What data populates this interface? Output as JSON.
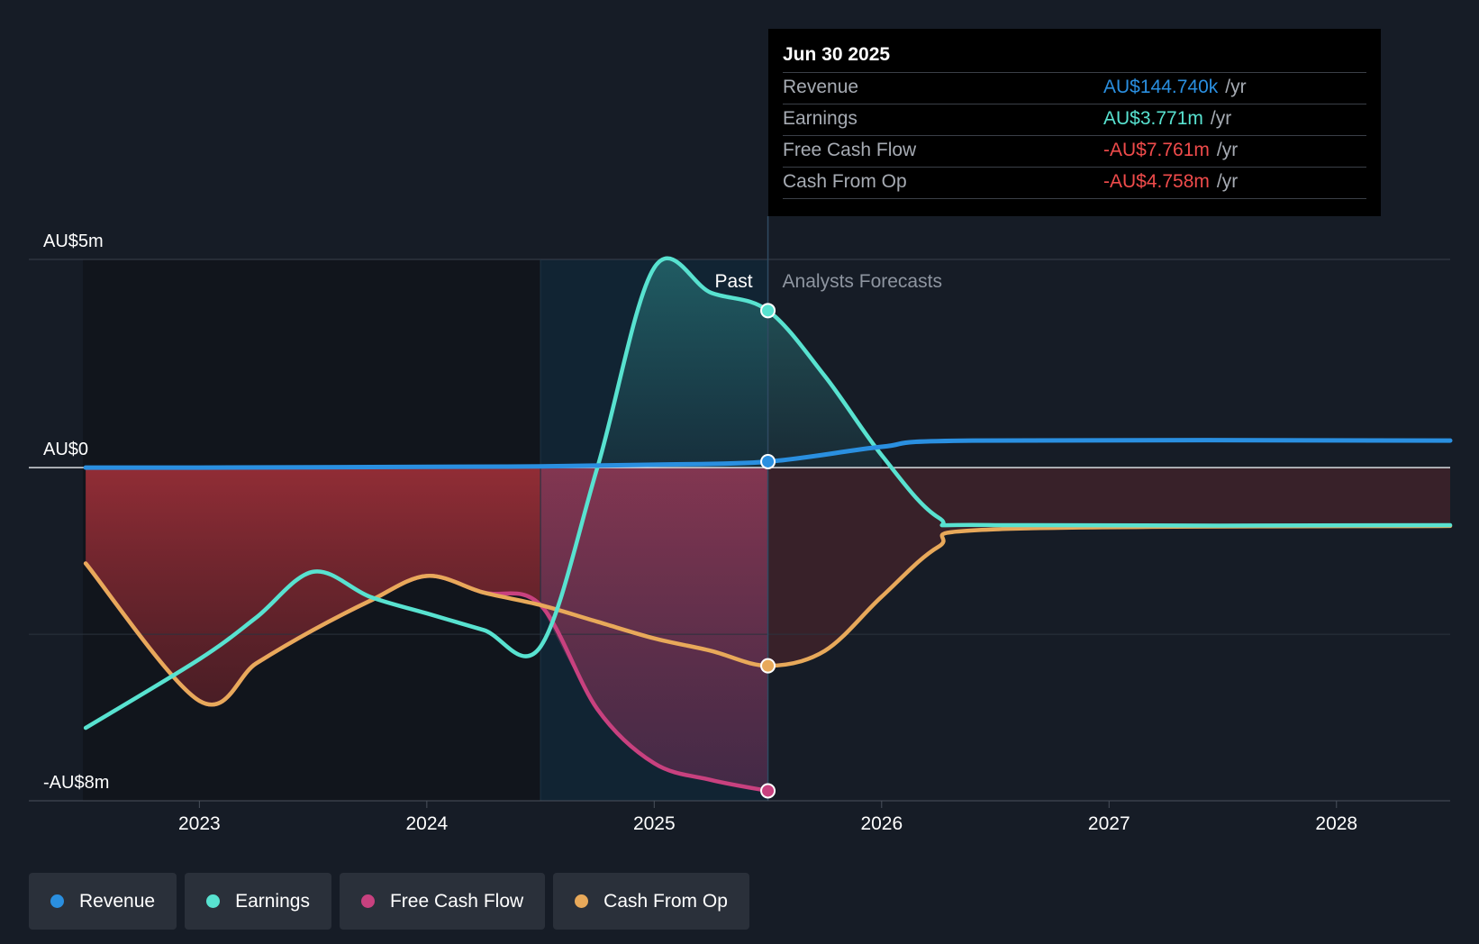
{
  "colors": {
    "revenue": "#2a8fe0",
    "earnings": "#58e2d0",
    "fcf": "#c8417f",
    "cfo": "#e8a95a",
    "negative": "#ef4b4b",
    "background": "#161c26"
  },
  "chart_data": {
    "type": "line",
    "y_unit": "AU$",
    "ylim": [
      -8000000,
      5000000
    ],
    "y_tick_labels": [
      {
        "label": "AU$5m",
        "value": 5000000
      },
      {
        "label": "AU$0",
        "value": 0
      },
      {
        "label": "-AU$8m",
        "value": -8000000
      }
    ],
    "x_ticks": [
      {
        "label": "2023",
        "value": 2023.0
      },
      {
        "label": "2024",
        "value": 2024.0
      },
      {
        "label": "2025",
        "value": 2025.0
      },
      {
        "label": "2026",
        "value": 2026.0
      },
      {
        "label": "2027",
        "value": 2027.0
      },
      {
        "label": "2028",
        "value": 2028.0
      }
    ],
    "xlim": [
      2022.25,
      2028.5
    ],
    "past_label": "Past",
    "forecast_label": "Analysts Forecasts",
    "divider_x": 2025.5,
    "highlight_start_x": 2024.5,
    "series": [
      {
        "key": "revenue",
        "name": "Revenue",
        "points": [
          [
            2022.5,
            0
          ],
          [
            2023.0,
            0
          ],
          [
            2024.0,
            20000
          ],
          [
            2024.5,
            30000
          ],
          [
            2025.0,
            70000
          ],
          [
            2025.5,
            144740
          ],
          [
            2026.0,
            500000
          ],
          [
            2026.4,
            650000
          ],
          [
            2028.5,
            650000
          ]
        ]
      },
      {
        "key": "earnings",
        "name": "Earnings",
        "points": [
          [
            2022.5,
            -6250000
          ],
          [
            2023.0,
            -4600000
          ],
          [
            2023.25,
            -3600000
          ],
          [
            2023.5,
            -2500000
          ],
          [
            2023.75,
            -3100000
          ],
          [
            2024.0,
            -3500000
          ],
          [
            2024.25,
            -3900000
          ],
          [
            2024.5,
            -4300000
          ],
          [
            2024.75,
            0
          ],
          [
            2025.0,
            4800000
          ],
          [
            2025.25,
            4200000
          ],
          [
            2025.5,
            3771000
          ],
          [
            2025.75,
            2200000
          ],
          [
            2026.0,
            300000
          ],
          [
            2026.25,
            -1200000
          ],
          [
            2026.5,
            -1380000
          ],
          [
            2028.5,
            -1380000
          ]
        ]
      },
      {
        "key": "fcf",
        "name": "Free Cash Flow",
        "points": [
          [
            2022.5,
            -2300000
          ],
          [
            2023.0,
            -5600000
          ],
          [
            2023.25,
            -4700000
          ],
          [
            2023.5,
            -3900000
          ],
          [
            2023.75,
            -3200000
          ],
          [
            2024.0,
            -2600000
          ],
          [
            2024.25,
            -3000000
          ],
          [
            2024.5,
            -3300000
          ],
          [
            2024.75,
            -5800000
          ],
          [
            2025.0,
            -7100000
          ],
          [
            2025.25,
            -7500000
          ],
          [
            2025.5,
            -7761000
          ]
        ]
      },
      {
        "key": "cfo",
        "name": "Cash From Op",
        "points": [
          [
            2022.5,
            -2300000
          ],
          [
            2023.0,
            -5600000
          ],
          [
            2023.25,
            -4700000
          ],
          [
            2023.5,
            -3900000
          ],
          [
            2023.75,
            -3200000
          ],
          [
            2024.0,
            -2600000
          ],
          [
            2024.25,
            -3000000
          ],
          [
            2024.5,
            -3300000
          ],
          [
            2024.75,
            -3700000
          ],
          [
            2025.0,
            -4100000
          ],
          [
            2025.25,
            -4400000
          ],
          [
            2025.5,
            -4758000
          ],
          [
            2025.75,
            -4400000
          ],
          [
            2026.0,
            -3100000
          ],
          [
            2026.25,
            -1900000
          ],
          [
            2026.5,
            -1480000
          ],
          [
            2028.5,
            -1400000
          ]
        ]
      }
    ]
  },
  "tooltip": {
    "date": "Jun 30 2025",
    "rows": [
      {
        "name": "Revenue",
        "value": "AU$144.740k",
        "unit": "/yr"
      },
      {
        "name": "Earnings",
        "value": "AU$3.771m",
        "unit": "/yr"
      },
      {
        "name": "Free Cash Flow",
        "value": "-AU$7.761m",
        "unit": "/yr"
      },
      {
        "name": "Cash From Op",
        "value": "-AU$4.758m",
        "unit": "/yr"
      }
    ]
  },
  "legend": [
    {
      "key": "revenue",
      "label": "Revenue"
    },
    {
      "key": "earnings",
      "label": "Earnings"
    },
    {
      "key": "fcf",
      "label": "Free Cash Flow"
    },
    {
      "key": "cfo",
      "label": "Cash From Op"
    }
  ]
}
